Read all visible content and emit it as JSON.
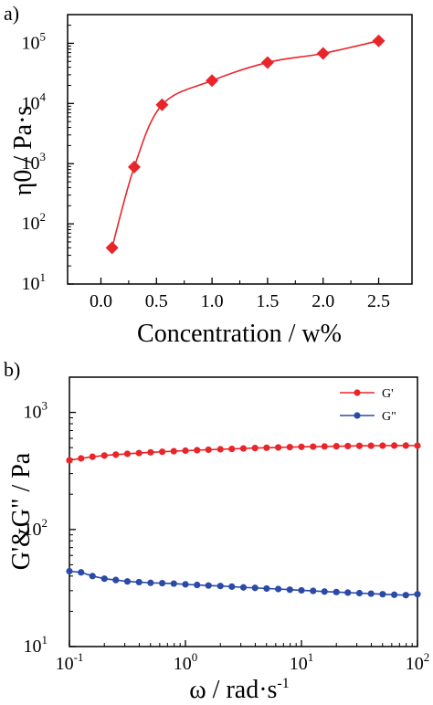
{
  "chart_data": [
    {
      "panel_label": "a)",
      "type": "scatter",
      "title": "",
      "xlabel": "Concentration / w%",
      "ylabel": "η0 / Pa·s",
      "xlim": [
        -0.3,
        2.8
      ],
      "ylim": [
        10,
        300000
      ],
      "yscale": "log",
      "grid": false,
      "x_ticks": [
        "0.0",
        "0.5",
        "1.0",
        "1.5",
        "2.0",
        "2.5"
      ],
      "y_ticks": [
        "10",
        "10",
        "10",
        "10",
        "10"
      ],
      "y_tick_exponents": [
        "1",
        "2",
        "3",
        "4",
        "5"
      ],
      "series": [
        {
          "color": "#e8262a",
          "marker": "diamond",
          "fit_line": true,
          "x": [
            0.1,
            0.3,
            0.55,
            1.0,
            1.5,
            2.0,
            2.5
          ],
          "y": [
            40,
            880,
            9500,
            24000,
            48000,
            68000,
            110000
          ]
        }
      ]
    },
    {
      "panel_label": "b)",
      "type": "line",
      "title": "",
      "xlabel": "ω / rad·s",
      "xlabel_superscript": "-1",
      "ylabel": "G'&G\" / Pa",
      "xlim": [
        0.1,
        100
      ],
      "ylim": [
        10,
        2000
      ],
      "xscale": "log",
      "yscale": "log",
      "grid": false,
      "legend_position": "top-right",
      "x_ticks": [
        "10",
        "10",
        "10",
        "10"
      ],
      "x_tick_exponents": [
        "-1",
        "0",
        "1",
        "2"
      ],
      "y_ticks": [
        "10",
        "10",
        "10"
      ],
      "y_tick_exponents": [
        "1",
        "2",
        "3"
      ],
      "series": [
        {
          "name": "G'",
          "color": "#e8262a",
          "x": [
            0.1,
            0.126,
            0.158,
            0.2,
            0.251,
            0.316,
            0.398,
            0.501,
            0.631,
            0.794,
            1,
            1.26,
            1.58,
            2,
            2.51,
            3.16,
            3.98,
            5.01,
            6.31,
            7.94,
            10,
            12.6,
            15.8,
            20,
            25.1,
            31.6,
            39.8,
            50.1,
            63.1,
            79.4,
            100
          ],
          "y": [
            390,
            405,
            418,
            428,
            436,
            443,
            450,
            456,
            461,
            466,
            471,
            476,
            480,
            484,
            488,
            492,
            496,
            499,
            502,
            505,
            508,
            510,
            512,
            514,
            516,
            518,
            519,
            520,
            521,
            521,
            520
          ]
        },
        {
          "name": "G\"",
          "color": "#2b4aa8",
          "x": [
            0.1,
            0.126,
            0.158,
            0.2,
            0.251,
            0.316,
            0.398,
            0.501,
            0.631,
            0.794,
            1,
            1.26,
            1.58,
            2,
            2.51,
            3.16,
            3.98,
            5.01,
            6.31,
            7.94,
            10,
            12.6,
            15.8,
            20,
            25.1,
            31.6,
            39.8,
            50.1,
            63.1,
            79.4,
            100
          ],
          "y": [
            44,
            43,
            40,
            38,
            37,
            36,
            35.5,
            35,
            34.8,
            34.5,
            34,
            33.6,
            33.2,
            32.9,
            32.5,
            32,
            31.7,
            31.3,
            31,
            30.6,
            30.2,
            29.9,
            29.5,
            29.2,
            28.9,
            28.6,
            28.3,
            28,
            27.7,
            27.5,
            28
          ]
        }
      ]
    }
  ]
}
